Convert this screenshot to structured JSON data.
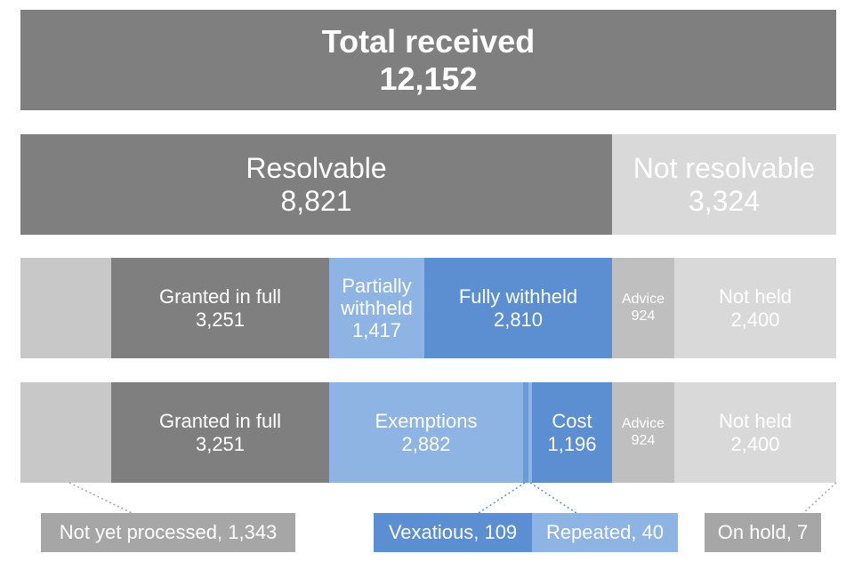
{
  "total": {
    "label": "Total received",
    "value": "12,152"
  },
  "resolvable": {
    "label": "Resolvable",
    "value": "8,821"
  },
  "not_resolvable": {
    "label": "Not resolvable",
    "value": "3,324"
  },
  "row3": {
    "granted": {
      "label": "Granted in full",
      "value": "3,251"
    },
    "partially": {
      "label_line1": "Partially",
      "label_line2": "withheld",
      "value": "1,417"
    },
    "fully": {
      "label": "Fully withheld",
      "value": "2,810"
    },
    "advice": {
      "label": "Advice",
      "value": "924"
    },
    "not_held": {
      "label": "Not held",
      "value": "2,400"
    }
  },
  "row4": {
    "granted": {
      "label": "Granted in full",
      "value": "3,251"
    },
    "exemptions": {
      "label": "Exemptions",
      "value": "2,882"
    },
    "cost": {
      "label": "Cost",
      "value": "1,196"
    },
    "advice": {
      "label": "Advice",
      "value": "924"
    },
    "not_held": {
      "label": "Not held",
      "value": "2,400"
    }
  },
  "callouts": {
    "not_yet_processed": "Not yet processed, 1,343",
    "vexatious": "Vexatious, 109",
    "repeated": "Repeated, 40",
    "on_hold": "On hold, 7"
  },
  "colors": {
    "dark_grey": "#7f7f7f",
    "light_grey": "#d9d9d9",
    "mid_grey": "#bfbfbf",
    "light_blue": "#8db4e2",
    "blue": "#5b8fd2"
  }
}
